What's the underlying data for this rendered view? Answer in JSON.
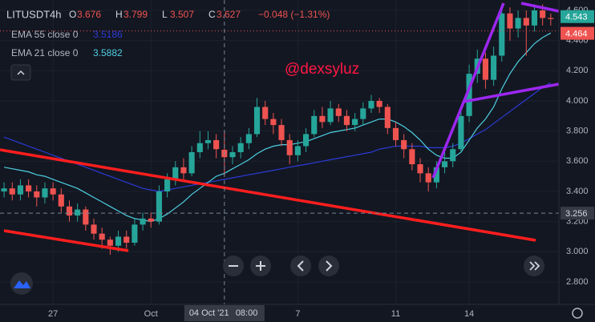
{
  "chart_data": {
    "type": "candlestick",
    "symbol": "LITUSDT",
    "interval": "4h",
    "ohlc_labels": [
      "O",
      "H",
      "L",
      "C"
    ],
    "ohlc_values": [
      3.676,
      3.799,
      3.507,
      3.627
    ],
    "change": "−0.048 (−1.31%)",
    "annotation": "@dexsyluz",
    "up_color": "#26a69a",
    "down_color": "#ef5350",
    "xlim": [
      -0.5,
      68
    ],
    "xticks": [
      {
        "value": 6,
        "label": "27"
      },
      {
        "value": 18,
        "label": "Oct"
      },
      {
        "value": 36,
        "label": "7"
      },
      {
        "value": 48,
        "label": "11"
      },
      {
        "value": 57,
        "label": "14"
      }
    ],
    "ylim": [
      2.651,
      4.669
    ],
    "yticks": [
      {
        "value": 2.8,
        "label": "2.800"
      },
      {
        "value": 3.0,
        "label": "3.000"
      },
      {
        "value": 3.2,
        "label": "3.200"
      },
      {
        "value": 3.4,
        "label": "3.400"
      },
      {
        "value": 3.6,
        "label": "3.600"
      },
      {
        "value": 3.8,
        "label": "3.800"
      },
      {
        "value": 4.0,
        "label": "4.000"
      },
      {
        "value": 4.2,
        "label": "4.200"
      },
      {
        "value": 4.4,
        "label": "4.400"
      },
      {
        "value": 4.6,
        "label": "4.600"
      }
    ],
    "grid": true,
    "open": [
      3.4,
      3.42,
      3.38,
      3.44,
      3.4,
      3.36,
      3.42,
      3.38,
      3.3,
      3.24,
      3.28,
      3.18,
      3.12,
      3.08,
      3.04,
      3.1,
      3.06,
      3.18,
      3.22,
      3.2,
      3.4,
      3.48,
      3.56,
      3.52,
      3.66,
      3.72,
      3.74,
      3.676,
      3.627,
      3.66,
      3.72,
      3.78,
      3.96,
      3.88,
      3.84,
      3.74,
      3.64,
      3.7,
      3.78,
      3.9,
      3.86,
      3.95,
      3.9,
      3.84,
      3.88,
      3.95,
      4.0,
      3.96,
      3.82,
      3.74,
      3.68,
      3.58,
      3.52,
      3.46,
      3.56,
      3.6,
      3.68,
      3.9,
      4.18,
      4.28,
      4.14,
      4.3,
      4.58,
      4.48,
      4.55,
      4.5,
      4.6,
      4.55
    ],
    "high": [
      3.46,
      3.46,
      3.48,
      3.48,
      3.44,
      3.46,
      3.46,
      3.42,
      3.34,
      3.32,
      3.3,
      3.22,
      3.16,
      3.1,
      3.14,
      3.14,
      3.22,
      3.26,
      3.26,
      3.44,
      3.52,
      3.6,
      3.62,
      3.7,
      3.8,
      3.8,
      3.78,
      3.799,
      3.7,
      3.76,
      3.82,
      4.02,
      4.0,
      3.92,
      3.88,
      3.78,
      3.74,
      3.82,
      3.94,
      3.96,
      4.0,
      3.98,
      3.94,
      3.92,
      3.99,
      4.04,
      4.02,
      3.98,
      3.86,
      3.78,
      3.72,
      3.62,
      3.56,
      3.6,
      3.66,
      3.72,
      3.94,
      4.24,
      4.34,
      4.32,
      4.36,
      4.64,
      4.62,
      4.6,
      4.6,
      4.64,
      4.64,
      4.58
    ],
    "low": [
      3.36,
      3.34,
      3.34,
      3.36,
      3.3,
      3.32,
      3.34,
      3.26,
      3.2,
      3.2,
      3.14,
      3.08,
      3.02,
      2.98,
      3.0,
      3.02,
      3.04,
      3.14,
      3.16,
      3.18,
      3.36,
      3.44,
      3.48,
      3.5,
      3.62,
      3.68,
      3.62,
      3.507,
      3.58,
      3.62,
      3.68,
      3.76,
      3.84,
      3.78,
      3.7,
      3.58,
      3.6,
      3.66,
      3.76,
      3.82,
      3.84,
      3.86,
      3.8,
      3.8,
      3.84,
      3.92,
      3.92,
      3.78,
      3.7,
      3.62,
      3.54,
      3.46,
      3.4,
      3.42,
      3.52,
      3.56,
      3.66,
      3.86,
      4.12,
      4.08,
      4.1,
      4.26,
      4.4,
      4.42,
      4.3,
      4.46,
      4.5,
      4.5
    ],
    "close": [
      3.42,
      3.38,
      3.44,
      3.4,
      3.36,
      3.42,
      3.38,
      3.3,
      3.24,
      3.28,
      3.18,
      3.12,
      3.08,
      3.04,
      3.1,
      3.06,
      3.18,
      3.22,
      3.2,
      3.4,
      3.48,
      3.56,
      3.52,
      3.66,
      3.72,
      3.74,
      3.68,
      3.627,
      3.66,
      3.72,
      3.78,
      3.96,
      3.88,
      3.84,
      3.74,
      3.64,
      3.7,
      3.78,
      3.9,
      3.86,
      3.95,
      3.9,
      3.84,
      3.88,
      3.95,
      4.0,
      3.96,
      3.82,
      3.74,
      3.68,
      3.58,
      3.52,
      3.46,
      3.56,
      3.6,
      3.68,
      3.9,
      4.18,
      4.28,
      4.14,
      4.3,
      4.58,
      4.48,
      4.55,
      4.5,
      4.6,
      4.55,
      4.543
    ],
    "series": [
      {
        "name": "EMA 55 close 0",
        "last": "3.5186",
        "color": "#2b3bd6",
        "values": [
          3.76,
          3.74,
          3.72,
          3.7,
          3.68,
          3.66,
          3.64,
          3.62,
          3.6,
          3.58,
          3.56,
          3.54,
          3.52,
          3.5,
          3.48,
          3.46,
          3.44,
          3.42,
          3.41,
          3.4,
          3.41,
          3.42,
          3.43,
          3.44,
          3.45,
          3.46,
          3.47,
          3.48,
          3.49,
          3.5,
          3.51,
          3.52,
          3.53,
          3.54,
          3.55,
          3.56,
          3.57,
          3.58,
          3.59,
          3.6,
          3.61,
          3.62,
          3.63,
          3.64,
          3.65,
          3.66,
          3.68,
          3.69,
          3.7,
          3.7,
          3.7,
          3.7,
          3.69,
          3.69,
          3.69,
          3.7,
          3.72,
          3.75,
          3.78,
          3.81,
          3.85,
          3.89,
          3.93,
          3.97,
          4.01,
          4.05,
          4.09,
          4.12
        ]
      },
      {
        "name": "EMA 21 close 0",
        "last": "3.5882",
        "color": "#4dd0e1",
        "values": [
          3.56,
          3.55,
          3.54,
          3.53,
          3.51,
          3.5,
          3.48,
          3.46,
          3.44,
          3.42,
          3.39,
          3.36,
          3.33,
          3.3,
          3.27,
          3.24,
          3.22,
          3.21,
          3.2,
          3.22,
          3.25,
          3.29,
          3.33,
          3.38,
          3.42,
          3.46,
          3.5,
          3.52,
          3.55,
          3.58,
          3.61,
          3.65,
          3.68,
          3.7,
          3.71,
          3.71,
          3.72,
          3.73,
          3.75,
          3.77,
          3.79,
          3.8,
          3.81,
          3.82,
          3.84,
          3.86,
          3.88,
          3.88,
          3.86,
          3.83,
          3.79,
          3.74,
          3.68,
          3.64,
          3.62,
          3.62,
          3.66,
          3.74,
          3.82,
          3.88,
          3.96,
          4.08,
          4.18,
          4.26,
          4.32,
          4.38,
          4.42,
          4.45
        ]
      }
    ],
    "last_price": 4.543,
    "marker_price": 4.464,
    "crosshair": {
      "x": 27,
      "y": 3.256,
      "date": "04 Oct '21",
      "time": "08:00"
    }
  }
}
